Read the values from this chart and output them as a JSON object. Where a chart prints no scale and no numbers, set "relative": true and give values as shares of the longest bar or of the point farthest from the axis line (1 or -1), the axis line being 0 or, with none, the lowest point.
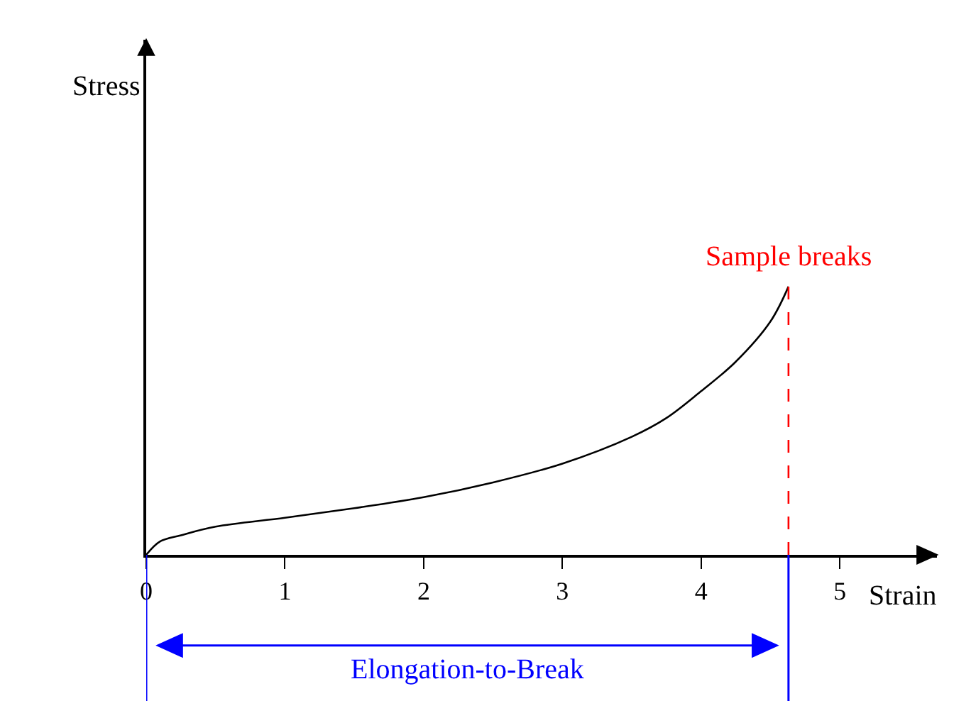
{
  "chart_data": {
    "type": "line",
    "xlabel": "Strain",
    "relative": true,
    "x": [
      0,
      0.1,
      0.25,
      0.5,
      1,
      1.5,
      2,
      2.5,
      3,
      3.5,
      3.75,
      4,
      4.25,
      4.5,
      4.63
    ],
    "series": [
      {
        "color": "#000000",
        "values": [
          0,
          0.05,
          0.073,
          0.105,
          0.138,
          0.174,
          0.215,
          0.27,
          0.34,
          0.44,
          0.51,
          0.61,
          0.72,
          0.87,
          1
        ]
      }
    ],
    "xlim": [
      0,
      5.7
    ],
    "xticks": [
      0,
      1,
      2,
      3,
      4,
      5
    ],
    "ref_lines": [
      {
        "axis": "x",
        "value": 4.63,
        "label": "Sample breaks",
        "color": "#ff0000",
        "line_style": "dashed"
      }
    ],
    "annotations": [
      "Stress",
      "Elongation-to-Break"
    ],
    "marker": "none",
    "line_style": "solid"
  }
}
